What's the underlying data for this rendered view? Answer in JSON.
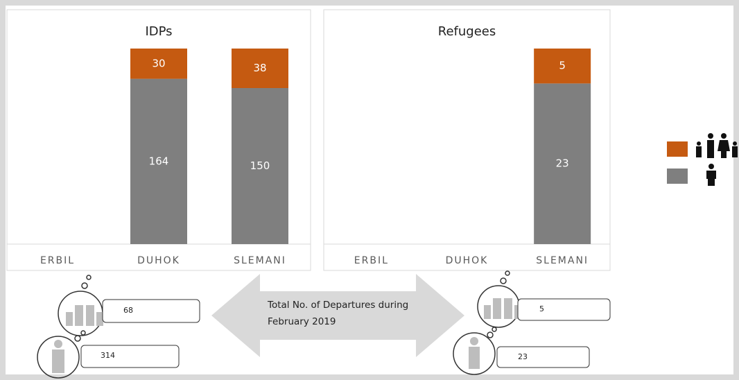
{
  "chart_data": [
    {
      "type": "bar",
      "stacking": "percent",
      "title": "IDPs",
      "categories": [
        "ERBIL",
        "DUHOK",
        "SLEMANI"
      ],
      "series": [
        {
          "color": "#7f7f7f",
          "values": [
            null,
            164,
            150
          ]
        },
        {
          "color": "#c55a11",
          "values": [
            null,
            30,
            38
          ]
        }
      ]
    },
    {
      "type": "bar",
      "stacking": "percent",
      "title": "Refugees",
      "categories": [
        "ERBIL",
        "DUHOK",
        "SLEMANI"
      ],
      "series": [
        {
          "color": "#7f7f7f",
          "values": [
            null,
            null,
            23
          ]
        },
        {
          "color": "#c55a11",
          "values": [
            null,
            null,
            5
          ]
        }
      ]
    }
  ],
  "summary": {
    "label": "Total No. of Departures during February 2019",
    "idps": {
      "families": 68,
      "individuals": 314
    },
    "refugees": {
      "families": 5,
      "individuals": 23
    }
  }
}
